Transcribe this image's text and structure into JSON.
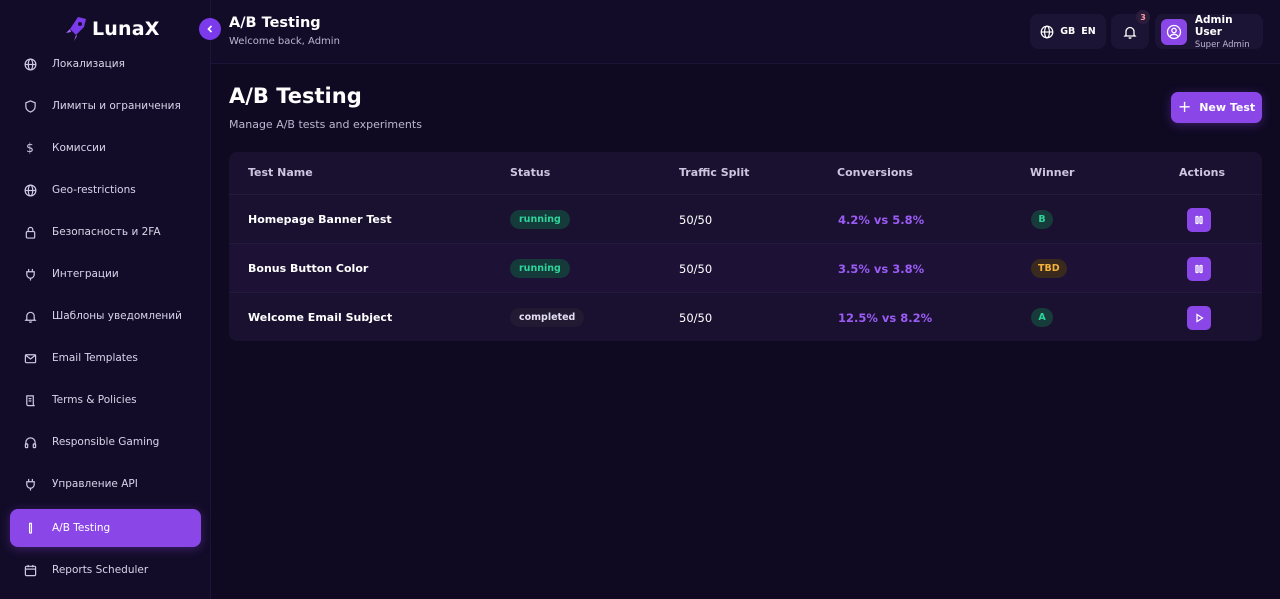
{
  "app": {
    "name": "LunaX"
  },
  "sidebar": {
    "items": [
      {
        "label": "Локализация",
        "icon": "globe-icon"
      },
      {
        "label": "Лимиты и ограничения",
        "icon": "shield-icon"
      },
      {
        "label": "Комиссии",
        "icon": "dollar-icon"
      },
      {
        "label": "Geo-restrictions",
        "icon": "globe-icon"
      },
      {
        "label": "Безопасность и 2FA",
        "icon": "lock-icon"
      },
      {
        "label": "Интеграции",
        "icon": "plug-icon"
      },
      {
        "label": "Шаблоны уведомлений",
        "icon": "bell-icon"
      },
      {
        "label": "Email Templates",
        "icon": "mail-icon"
      },
      {
        "label": "Terms & Policies",
        "icon": "scroll-icon"
      },
      {
        "label": "Responsible Gaming",
        "icon": "headphones-icon"
      },
      {
        "label": "Управление API",
        "icon": "plug-icon"
      },
      {
        "label": "A/B Testing",
        "icon": "test-tube-icon",
        "active": true
      },
      {
        "label": "Reports Scheduler",
        "icon": "calendar-icon"
      }
    ]
  },
  "header": {
    "title": "A/B Testing",
    "subtitle": "Welcome back, Admin",
    "lang_flag": "GB",
    "lang_code": "EN",
    "notifications_count": "3",
    "user_name": "Admin User",
    "user_role": "Super Admin"
  },
  "main": {
    "title": "A/B Testing",
    "subtitle": "Manage A/B tests and experiments",
    "new_button": "New Test"
  },
  "table": {
    "columns": [
      "Test Name",
      "Status",
      "Traffic Split",
      "Conversions",
      "Winner",
      "Actions"
    ],
    "rows": [
      {
        "name": "Homepage Banner Test",
        "status": "running",
        "split": "50/50",
        "conversions": "4.2% vs 5.8%",
        "winner": "B",
        "action": "pause-icon"
      },
      {
        "name": "Bonus Button Color",
        "status": "running",
        "split": "50/50",
        "conversions": "3.5% vs 3.8%",
        "winner": "TBD",
        "action": "pause-icon"
      },
      {
        "name": "Welcome Email Subject",
        "status": "completed",
        "split": "50/50",
        "conversions": "12.5% vs 8.2%",
        "winner": "A",
        "action": "play-icon"
      }
    ]
  },
  "colors": {
    "background": "#0f0a22",
    "sidebar": "#130c28",
    "accent": "#8b46e8",
    "running": "#2fd49b",
    "tbd": "#f3b23c",
    "conversions": "#9b5cf6"
  }
}
